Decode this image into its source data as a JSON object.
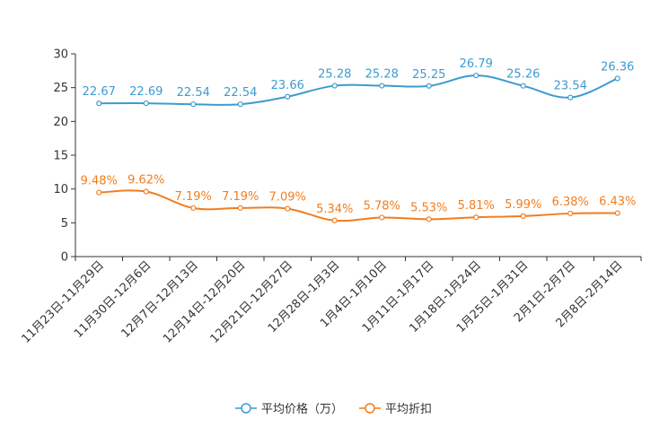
{
  "chart_data": {
    "type": "line",
    "categories": [
      "11月23日-11月29日",
      "11月30日-12月6日",
      "12月7日-12月13日",
      "12月14日-12月20日",
      "12月21日-12月27日",
      "12月28日-1月3日",
      "1月4日-1月10日",
      "1月11日-1月17日",
      "1月18日-1月24日",
      "1月25日-1月31日",
      "2月1日-2月7日",
      "2月8日-2月14日"
    ],
    "series": [
      {
        "name": "平均价格（万）",
        "color": "#3d9bcf",
        "values": [
          22.67,
          22.69,
          22.54,
          22.54,
          23.66,
          25.28,
          25.28,
          25.25,
          26.79,
          25.26,
          23.54,
          26.36
        ],
        "labels": [
          "22.67",
          "22.69",
          "22.54",
          "22.54",
          "23.66",
          "25.28",
          "25.28",
          "25.25",
          "26.79",
          "25.26",
          "23.54",
          "26.36"
        ]
      },
      {
        "name": "平均折扣",
        "color": "#f37d1e",
        "values": [
          9.48,
          9.62,
          7.19,
          7.19,
          7.09,
          5.34,
          5.78,
          5.53,
          5.81,
          5.99,
          6.38,
          6.43
        ],
        "labels": [
          "9.48%",
          "9.62%",
          "7.19%",
          "7.19%",
          "7.09%",
          "5.34%",
          "5.78%",
          "5.53%",
          "5.81%",
          "5.99%",
          "6.38%",
          "6.43%"
        ]
      }
    ],
    "yticks": [
      "0",
      "5",
      "10",
      "15",
      "20",
      "25",
      "30"
    ],
    "ylim": [
      0,
      30
    ],
    "title": "",
    "xlabel": "",
    "ylabel": "",
    "legend_position": "bottom-center",
    "grid": false
  }
}
